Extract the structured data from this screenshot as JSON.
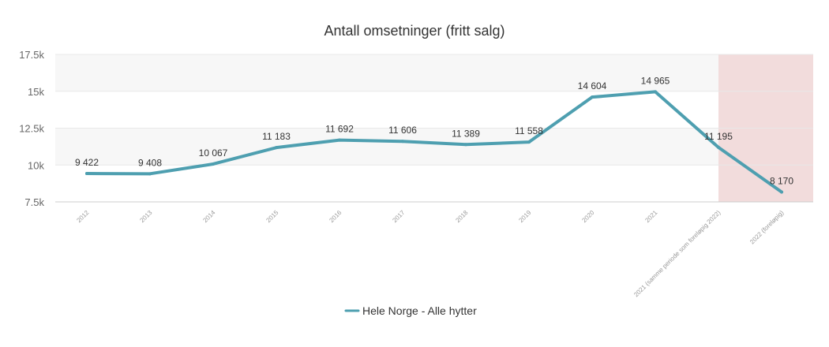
{
  "chart_data": {
    "type": "line",
    "title": "Antall omsetninger (fritt salg)",
    "xlabel": "",
    "ylabel": "",
    "categories": [
      "2012",
      "2013",
      "2014",
      "2015",
      "2016",
      "2017",
      "2018",
      "2019",
      "2020",
      "2021",
      "2021 (samme periode som foreløpig 2022)",
      "2022 (foreløpig)"
    ],
    "series": [
      {
        "name": "Hele Norge - Alle hytter",
        "values": [
          9422,
          9408,
          10067,
          11183,
          11692,
          11606,
          11389,
          11558,
          14604,
          14965,
          11195,
          8170
        ],
        "labels": [
          "9 422",
          "9 408",
          "10 067",
          "11 183",
          "11 692",
          "11 606",
          "11 389",
          "11 558",
          "14 604",
          "14 965",
          "11 195",
          "8 170"
        ],
        "color": "#4e9fb0"
      }
    ],
    "ylim": [
      7500,
      17500
    ],
    "yticks": [
      7500,
      10000,
      12500,
      15000,
      17500
    ],
    "ytick_labels": [
      "7.5k",
      "10k",
      "12.5k",
      "15k",
      "17.5k"
    ],
    "grid": true,
    "alternating_bands": true,
    "highlight": {
      "from_category": 10,
      "to_category": 11,
      "color": "#f2dcdc"
    },
    "legend": {
      "position": "bottom-center"
    }
  }
}
